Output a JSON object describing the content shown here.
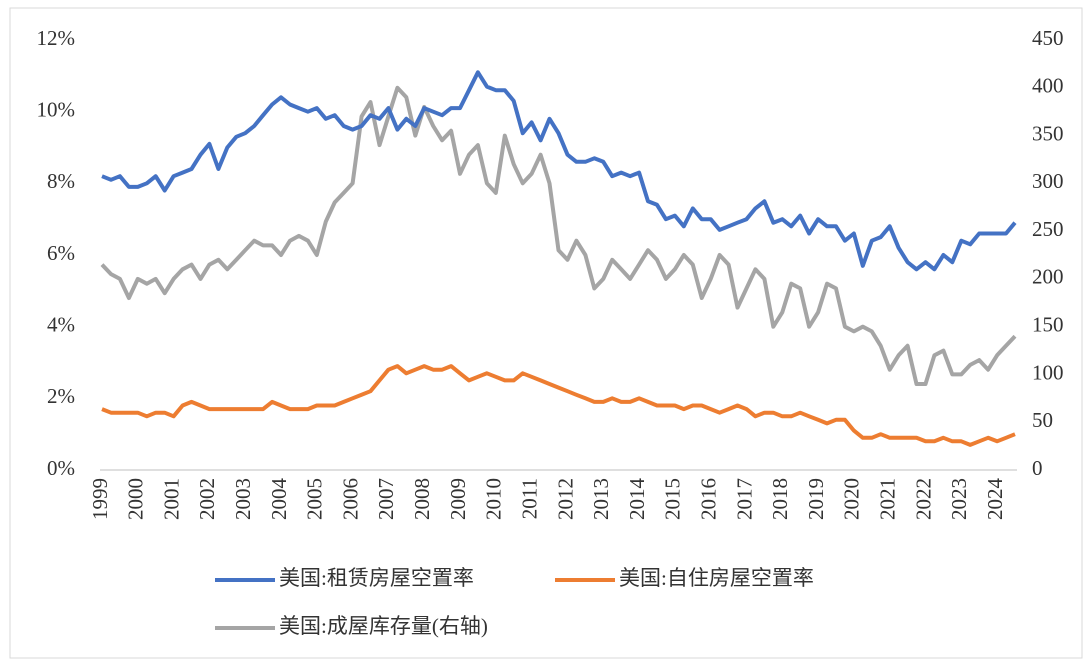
{
  "chart_data": {
    "type": "line",
    "categories": [
      "1999",
      null,
      null,
      null,
      "2000",
      null,
      null,
      null,
      "2001",
      null,
      null,
      null,
      "2002",
      null,
      null,
      null,
      "2003",
      null,
      null,
      null,
      "2004",
      null,
      null,
      null,
      "2005",
      null,
      null,
      null,
      "2006",
      null,
      null,
      null,
      "2007",
      null,
      null,
      null,
      "2008",
      null,
      null,
      null,
      "2009",
      null,
      null,
      null,
      "2010",
      null,
      null,
      null,
      "2011",
      null,
      null,
      null,
      "2012",
      null,
      null,
      null,
      "2013",
      null,
      null,
      null,
      "2014",
      null,
      null,
      null,
      "2015",
      null,
      null,
      null,
      "2016",
      null,
      null,
      null,
      "2017",
      null,
      null,
      null,
      "2018",
      null,
      null,
      null,
      "2019",
      null,
      null,
      null,
      "2020",
      null,
      null,
      null,
      "2021",
      null,
      null,
      null,
      "2022",
      null,
      null,
      null,
      "2023",
      null,
      null,
      null,
      "2024",
      null,
      null
    ],
    "series": [
      {
        "name": "美国:租赁房屋空置率",
        "color": "#4472c4",
        "axis": "y",
        "values": [
          8.2,
          8.1,
          8.2,
          7.9,
          7.9,
          8.0,
          8.2,
          7.8,
          8.2,
          8.3,
          8.4,
          8.8,
          9.1,
          8.4,
          9.0,
          9.3,
          9.4,
          9.6,
          9.9,
          10.2,
          10.4,
          10.2,
          10.1,
          10.0,
          10.1,
          9.8,
          9.9,
          9.6,
          9.5,
          9.6,
          9.9,
          9.8,
          10.1,
          9.5,
          9.8,
          9.6,
          10.1,
          10.0,
          9.9,
          10.1,
          10.1,
          10.6,
          11.1,
          10.7,
          10.6,
          10.6,
          10.3,
          9.4,
          9.7,
          9.2,
          9.8,
          9.4,
          8.8,
          8.6,
          8.6,
          8.7,
          8.6,
          8.2,
          8.3,
          8.2,
          8.3,
          7.5,
          7.4,
          7.0,
          7.1,
          6.8,
          7.3,
          7.0,
          7.0,
          6.7,
          6.8,
          6.9,
          7.0,
          7.3,
          7.5,
          6.9,
          7.0,
          6.8,
          7.1,
          6.6,
          7.0,
          6.8,
          6.8,
          6.4,
          6.6,
          5.7,
          6.4,
          6.5,
          6.8,
          6.2,
          5.8,
          5.6,
          5.8,
          5.6,
          6.0,
          5.8,
          6.4,
          6.3,
          6.6,
          6.6,
          6.6,
          6.6,
          6.9
        ]
      },
      {
        "name": "美国:自住房屋空置率",
        "color": "#ed7d31",
        "axis": "y",
        "values": [
          1.7,
          1.6,
          1.6,
          1.6,
          1.6,
          1.5,
          1.6,
          1.6,
          1.5,
          1.8,
          1.9,
          1.8,
          1.7,
          1.7,
          1.7,
          1.7,
          1.7,
          1.7,
          1.7,
          1.9,
          1.8,
          1.7,
          1.7,
          1.7,
          1.8,
          1.8,
          1.8,
          1.9,
          2.0,
          2.1,
          2.2,
          2.5,
          2.8,
          2.9,
          2.7,
          2.8,
          2.9,
          2.8,
          2.8,
          2.9,
          2.7,
          2.5,
          2.6,
          2.7,
          2.6,
          2.5,
          2.5,
          2.7,
          2.6,
          2.5,
          2.4,
          2.3,
          2.2,
          2.1,
          2.0,
          1.9,
          1.9,
          2.0,
          1.9,
          1.9,
          2.0,
          1.9,
          1.8,
          1.8,
          1.8,
          1.7,
          1.8,
          1.8,
          1.7,
          1.6,
          1.7,
          1.8,
          1.7,
          1.5,
          1.6,
          1.6,
          1.5,
          1.5,
          1.6,
          1.5,
          1.4,
          1.3,
          1.4,
          1.4,
          1.1,
          0.9,
          0.9,
          1.0,
          0.9,
          0.9,
          0.9,
          0.9,
          0.8,
          0.8,
          0.9,
          0.8,
          0.8,
          0.7,
          0.8,
          0.9,
          0.8,
          0.9,
          1.0
        ]
      },
      {
        "name": "美国:成屋库存量(右轴)",
        "color": "#a5a5a5",
        "axis": "y2",
        "values": [
          215,
          205,
          200,
          180,
          200,
          195,
          200,
          185,
          200,
          210,
          215,
          200,
          215,
          220,
          210,
          220,
          230,
          240,
          235,
          235,
          225,
          240,
          245,
          240,
          225,
          260,
          280,
          290,
          300,
          370,
          385,
          340,
          370,
          400,
          390,
          350,
          380,
          360,
          345,
          355,
          310,
          330,
          340,
          300,
          290,
          350,
          320,
          300,
          310,
          330,
          300,
          230,
          220,
          240,
          225,
          190,
          200,
          220,
          210,
          200,
          215,
          230,
          220,
          200,
          210,
          225,
          215,
          180,
          200,
          225,
          215,
          170,
          190,
          210,
          200,
          150,
          165,
          195,
          190,
          150,
          165,
          195,
          190,
          150,
          145,
          150,
          145,
          130,
          105,
          120,
          130,
          90,
          90,
          120,
          125,
          100,
          100,
          110,
          115,
          105,
          120,
          130,
          140
        ]
      }
    ],
    "ylim": [
      0,
      12
    ],
    "yticks": [
      {
        "value": 0,
        "label": "0%"
      },
      {
        "value": 2,
        "label": "2%"
      },
      {
        "value": 4,
        "label": "4%"
      },
      {
        "value": 6,
        "label": "6%"
      },
      {
        "value": 8,
        "label": "8%"
      },
      {
        "value": 10,
        "label": "10%"
      },
      {
        "value": 12,
        "label": "12%"
      }
    ],
    "y2lim": [
      0,
      450
    ],
    "y2ticks": [
      0,
      50,
      100,
      150,
      200,
      250,
      300,
      350,
      400,
      450
    ],
    "grid": false,
    "legend": "bottom"
  }
}
